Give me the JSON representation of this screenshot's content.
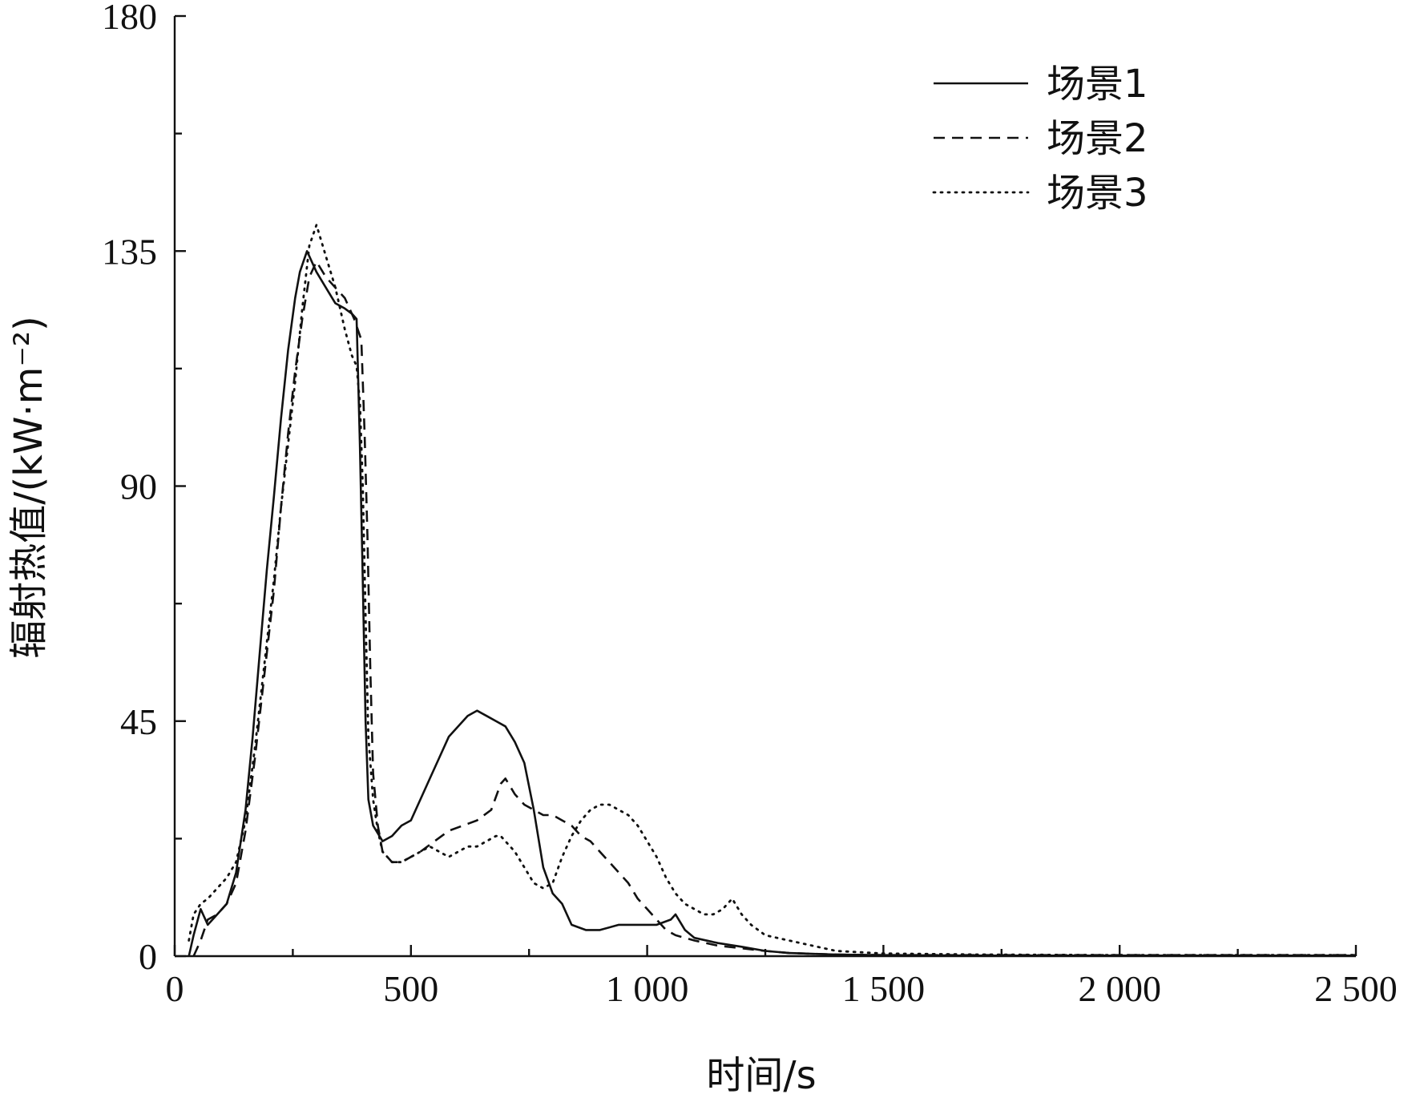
{
  "chart_data": {
    "type": "line",
    "title": "",
    "xlabel": "时间/s",
    "ylabel": "辐射热值/(kW·m⁻²)",
    "xlim": [
      0,
      2500
    ],
    "ylim": [
      0,
      180
    ],
    "x_ticks": [
      0,
      500,
      1000,
      1500,
      2000,
      2500
    ],
    "x_tick_labels": [
      "0",
      "500",
      "1 000",
      "1 500",
      "2 000",
      "2 500"
    ],
    "y_ticks": [
      0,
      45,
      90,
      135,
      180
    ],
    "y_tick_labels": [
      "0",
      "45",
      "90",
      "135",
      "180"
    ],
    "grid": false,
    "legend_position": "top-right",
    "series": [
      {
        "name": "场景1",
        "style": "solid",
        "color": "#111111",
        "points": [
          [
            30,
            0
          ],
          [
            40,
            4
          ],
          [
            55,
            9
          ],
          [
            70,
            6
          ],
          [
            90,
            8
          ],
          [
            110,
            10
          ],
          [
            130,
            16
          ],
          [
            150,
            28
          ],
          [
            165,
            42
          ],
          [
            180,
            58
          ],
          [
            195,
            74
          ],
          [
            210,
            88
          ],
          [
            225,
            103
          ],
          [
            240,
            116
          ],
          [
            255,
            126
          ],
          [
            265,
            131
          ],
          [
            280,
            135
          ],
          [
            300,
            131
          ],
          [
            320,
            128
          ],
          [
            340,
            125
          ],
          [
            360,
            124
          ],
          [
            375,
            123
          ],
          [
            385,
            122
          ],
          [
            392,
            98
          ],
          [
            398,
            72
          ],
          [
            404,
            45
          ],
          [
            410,
            30
          ],
          [
            420,
            25
          ],
          [
            440,
            22
          ],
          [
            460,
            23
          ],
          [
            480,
            25
          ],
          [
            500,
            26
          ],
          [
            520,
            30
          ],
          [
            540,
            34
          ],
          [
            560,
            38
          ],
          [
            580,
            42
          ],
          [
            600,
            44
          ],
          [
            620,
            46
          ],
          [
            640,
            47
          ],
          [
            660,
            46
          ],
          [
            680,
            45
          ],
          [
            700,
            44
          ],
          [
            720,
            41
          ],
          [
            740,
            37
          ],
          [
            760,
            28
          ],
          [
            780,
            17
          ],
          [
            800,
            12
          ],
          [
            820,
            10
          ],
          [
            840,
            6
          ],
          [
            870,
            5
          ],
          [
            900,
            5
          ],
          [
            940,
            6
          ],
          [
            980,
            6
          ],
          [
            1020,
            6
          ],
          [
            1050,
            7
          ],
          [
            1060,
            8
          ],
          [
            1080,
            5
          ],
          [
            1100,
            3.5
          ],
          [
            1150,
            2.5
          ],
          [
            1200,
            1.8
          ],
          [
            1250,
            1.0
          ],
          [
            1300,
            0.6
          ],
          [
            1400,
            0.3
          ],
          [
            1500,
            0.2
          ],
          [
            1700,
            0.1
          ],
          [
            2000,
            0.1
          ],
          [
            2300,
            0.1
          ],
          [
            2500,
            0.1
          ]
        ]
      },
      {
        "name": "场景2",
        "style": "dashed",
        "color": "#111111",
        "points": [
          [
            40,
            0
          ],
          [
            55,
            3
          ],
          [
            70,
            7
          ],
          [
            90,
            8
          ],
          [
            110,
            10
          ],
          [
            130,
            14
          ],
          [
            150,
            24
          ],
          [
            170,
            38
          ],
          [
            190,
            54
          ],
          [
            210,
            70
          ],
          [
            225,
            86
          ],
          [
            240,
            100
          ],
          [
            255,
            112
          ],
          [
            270,
            122
          ],
          [
            285,
            130
          ],
          [
            300,
            133
          ],
          [
            320,
            130
          ],
          [
            340,
            128
          ],
          [
            360,
            126
          ],
          [
            380,
            122
          ],
          [
            395,
            118
          ],
          [
            402,
            100
          ],
          [
            408,
            80
          ],
          [
            414,
            55
          ],
          [
            420,
            35
          ],
          [
            430,
            25
          ],
          [
            440,
            20
          ],
          [
            460,
            18
          ],
          [
            480,
            18
          ],
          [
            500,
            19
          ],
          [
            520,
            20
          ],
          [
            550,
            22
          ],
          [
            580,
            24
          ],
          [
            610,
            25
          ],
          [
            640,
            26
          ],
          [
            670,
            28
          ],
          [
            690,
            33
          ],
          [
            700,
            34
          ],
          [
            720,
            31
          ],
          [
            740,
            29
          ],
          [
            760,
            28
          ],
          [
            780,
            27
          ],
          [
            800,
            27
          ],
          [
            820,
            26
          ],
          [
            840,
            25
          ],
          [
            860,
            23
          ],
          [
            880,
            22
          ],
          [
            900,
            20
          ],
          [
            920,
            18
          ],
          [
            940,
            16
          ],
          [
            960,
            14
          ],
          [
            980,
            11
          ],
          [
            1000,
            9
          ],
          [
            1020,
            7
          ],
          [
            1040,
            5
          ],
          [
            1060,
            4
          ],
          [
            1100,
            3
          ],
          [
            1150,
            2
          ],
          [
            1200,
            1.5
          ],
          [
            1250,
            1.0
          ],
          [
            1300,
            0.6
          ],
          [
            1400,
            0.3
          ],
          [
            1500,
            0.2
          ],
          [
            1700,
            0.2
          ],
          [
            2000,
            0.2
          ],
          [
            2300,
            0.2
          ],
          [
            2500,
            0.2
          ]
        ]
      },
      {
        "name": "场景3",
        "style": "dotted",
        "color": "#111111",
        "points": [
          [
            30,
            3
          ],
          [
            40,
            8
          ],
          [
            55,
            10
          ],
          [
            70,
            11
          ],
          [
            90,
            13
          ],
          [
            110,
            15
          ],
          [
            130,
            18
          ],
          [
            150,
            26
          ],
          [
            170,
            40
          ],
          [
            190,
            56
          ],
          [
            210,
            72
          ],
          [
            225,
            86
          ],
          [
            240,
            98
          ],
          [
            255,
            110
          ],
          [
            270,
            124
          ],
          [
            285,
            136
          ],
          [
            300,
            140
          ],
          [
            320,
            134
          ],
          [
            340,
            128
          ],
          [
            360,
            120
          ],
          [
            375,
            115
          ],
          [
            385,
            113
          ],
          [
            392,
            106
          ],
          [
            398,
            90
          ],
          [
            404,
            65
          ],
          [
            410,
            42
          ],
          [
            420,
            30
          ],
          [
            430,
            24
          ],
          [
            440,
            20
          ],
          [
            460,
            18
          ],
          [
            480,
            18
          ],
          [
            500,
            19
          ],
          [
            520,
            20
          ],
          [
            540,
            21
          ],
          [
            560,
            20
          ],
          [
            580,
            19
          ],
          [
            600,
            20
          ],
          [
            620,
            21
          ],
          [
            640,
            21
          ],
          [
            660,
            22
          ],
          [
            680,
            23
          ],
          [
            690,
            23
          ],
          [
            700,
            22
          ],
          [
            720,
            20
          ],
          [
            740,
            17
          ],
          [
            760,
            14
          ],
          [
            780,
            13
          ],
          [
            800,
            14
          ],
          [
            820,
            19
          ],
          [
            840,
            23
          ],
          [
            860,
            26
          ],
          [
            880,
            28
          ],
          [
            900,
            29
          ],
          [
            920,
            29
          ],
          [
            940,
            28
          ],
          [
            960,
            27
          ],
          [
            980,
            25
          ],
          [
            1000,
            22
          ],
          [
            1020,
            19
          ],
          [
            1040,
            15
          ],
          [
            1060,
            12
          ],
          [
            1080,
            10
          ],
          [
            1100,
            9
          ],
          [
            1120,
            8
          ],
          [
            1140,
            8
          ],
          [
            1160,
            9
          ],
          [
            1180,
            11
          ],
          [
            1200,
            8
          ],
          [
            1220,
            6
          ],
          [
            1250,
            4
          ],
          [
            1300,
            3
          ],
          [
            1350,
            2
          ],
          [
            1400,
            1.0
          ],
          [
            1500,
            0.5
          ],
          [
            1700,
            0.3
          ],
          [
            2000,
            0.2
          ],
          [
            2300,
            0.2
          ],
          [
            2500,
            0.2
          ]
        ]
      }
    ]
  }
}
